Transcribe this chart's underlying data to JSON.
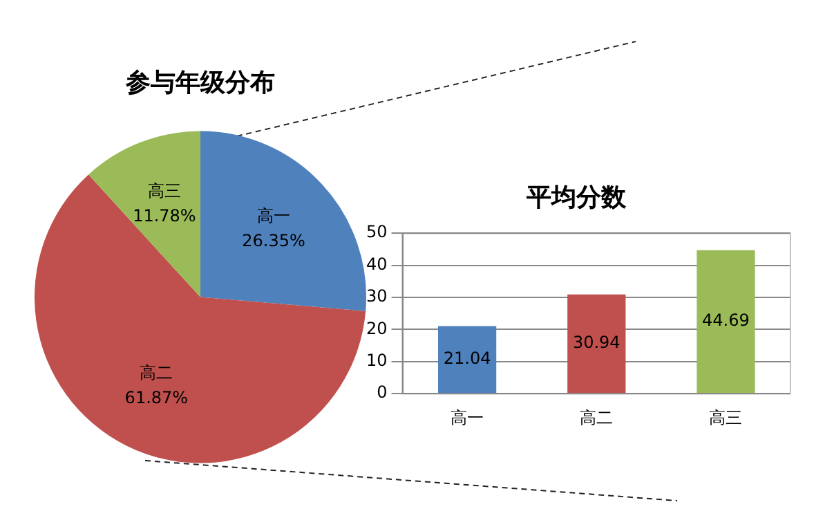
{
  "chart_data": [
    {
      "type": "pie",
      "title": "参与年级分布",
      "categories": [
        "高一",
        "高二",
        "高三"
      ],
      "values": [
        26.35,
        61.87,
        11.78
      ],
      "colors": [
        "#4f81bd",
        "#c0504d",
        "#9bbb59"
      ],
      "value_labels": [
        "26.35%",
        "61.87%",
        "11.78%"
      ],
      "legend": false
    },
    {
      "type": "bar",
      "title": "平均分数",
      "categories": [
        "高一",
        "高二",
        "高三"
      ],
      "values": [
        21.04,
        30.94,
        44.69
      ],
      "colors": [
        "#4f81bd",
        "#c0504d",
        "#9bbb59"
      ],
      "ylim": [
        0,
        50
      ],
      "yticks": [
        0,
        10,
        20,
        30,
        40,
        50
      ],
      "grid": "y",
      "data_labels": true,
      "legend": false
    }
  ]
}
